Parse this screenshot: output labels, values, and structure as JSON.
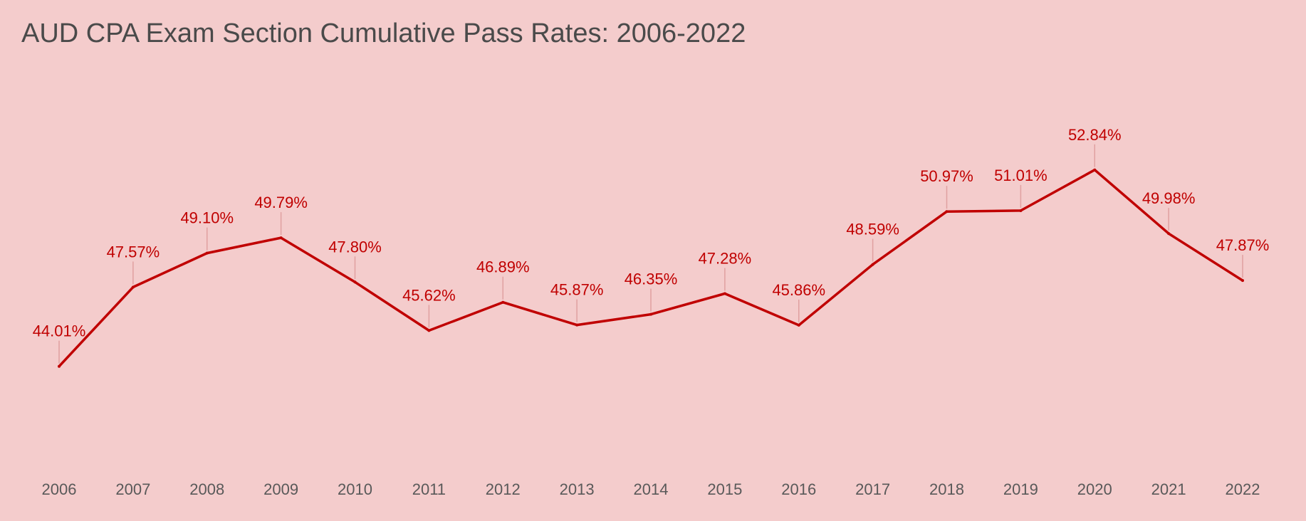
{
  "title": "AUD CPA Exam Section Cumulative Pass Rates: 2006-2022",
  "colors": {
    "background": "#f4cccc",
    "line": "#c00000",
    "data_label": "#c00000",
    "tick_label": "#595959",
    "leader": "#e0a0a0"
  },
  "chart_data": {
    "type": "line",
    "title": "AUD CPA Exam Section Cumulative Pass Rates: 2006-2022",
    "xlabel": "",
    "ylabel": "",
    "grid": false,
    "legend": "none",
    "categories": [
      "2006",
      "2007",
      "2008",
      "2009",
      "2010",
      "2011",
      "2012",
      "2013",
      "2014",
      "2015",
      "2016",
      "2017",
      "2018",
      "2019",
      "2020",
      "2021",
      "2022"
    ],
    "series": [
      {
        "values": [
          44.01,
          47.57,
          49.1,
          49.79,
          47.8,
          45.62,
          46.89,
          45.87,
          46.35,
          47.28,
          45.86,
          48.59,
          50.97,
          51.01,
          52.84,
          49.98,
          47.87
        ],
        "labels": [
          "44.01%",
          "47.57%",
          "49.10%",
          "49.79%",
          "47.80%",
          "45.62%",
          "46.89%",
          "45.87%",
          "46.35%",
          "47.28%",
          "45.86%",
          "48.59%",
          "50.97%",
          "51.01%",
          "52.84%",
          "49.98%",
          "47.87%"
        ]
      }
    ],
    "ylim": [
      40,
      56
    ]
  }
}
